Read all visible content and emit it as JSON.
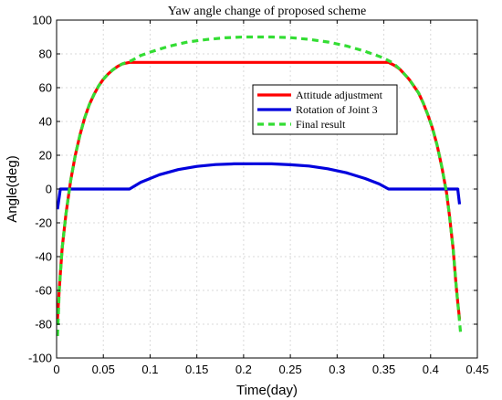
{
  "chart_data": {
    "type": "line",
    "title": "Yaw angle change of proposed scheme",
    "xlabel": "Time(day)",
    "ylabel": "Angle(deg)",
    "xlim": [
      0,
      0.45
    ],
    "ylim": [
      -100,
      100
    ],
    "xticks": [
      0,
      0.05,
      0.1,
      0.15,
      0.2,
      0.25,
      0.3,
      0.35,
      0.4,
      0.45
    ],
    "xtick_labels": [
      "0",
      "0.05",
      "0.1",
      "0.15",
      "0.2",
      "0.25",
      "0.3",
      "0.35",
      "0.4",
      "0.45"
    ],
    "yticks": [
      -100,
      -80,
      -60,
      -40,
      -20,
      0,
      20,
      40,
      60,
      80,
      100
    ],
    "ytick_labels": [
      "-100",
      "-80",
      "-60",
      "-40",
      "-20",
      "0",
      "20",
      "40",
      "60",
      "80",
      "100"
    ],
    "grid": true,
    "legend_position": "center-right",
    "series": [
      {
        "name": "Attitude adjustment",
        "color": "#ff0000",
        "style": "solid",
        "x": [
          0.001,
          0.003,
          0.006,
          0.01,
          0.015,
          0.02,
          0.025,
          0.03,
          0.035,
          0.04,
          0.045,
          0.05,
          0.055,
          0.06,
          0.065,
          0.07,
          0.078,
          0.355,
          0.362,
          0.367,
          0.372,
          0.377,
          0.382,
          0.387,
          0.392,
          0.397,
          0.402,
          0.407,
          0.412,
          0.417,
          0.42,
          0.424,
          0.427,
          0.429,
          0.431
        ],
        "y": [
          -77,
          -58,
          -35,
          -15,
          5,
          20,
          32,
          42,
          50,
          56,
          61,
          65,
          68,
          70.5,
          72.5,
          74,
          75,
          75,
          73,
          71,
          68,
          65,
          61,
          57,
          51,
          44,
          36,
          26,
          13,
          -2,
          -15,
          -35,
          -55,
          -67,
          -77
        ]
      },
      {
        "name": "Rotation of Joint 3",
        "color": "#0000dd",
        "style": "solid",
        "x": [
          0.001,
          0.004,
          0.078,
          0.09,
          0.11,
          0.13,
          0.15,
          0.17,
          0.19,
          0.21,
          0.215,
          0.23,
          0.25,
          0.27,
          0.29,
          0.31,
          0.33,
          0.345,
          0.355,
          0.419,
          0.429,
          0.431
        ],
        "y": [
          -12,
          0,
          0,
          4,
          8.5,
          11.5,
          13.4,
          14.5,
          14.9,
          15,
          15,
          14.9,
          14.4,
          13.6,
          12,
          9.6,
          6.2,
          3,
          0,
          0,
          0,
          -9
        ],
        "labels": []
      },
      {
        "name": "Final result",
        "color": "#33dd33",
        "style": "dashed",
        "x": [
          0.001,
          0.003,
          0.006,
          0.01,
          0.015,
          0.02,
          0.025,
          0.03,
          0.035,
          0.04,
          0.045,
          0.05,
          0.055,
          0.06,
          0.065,
          0.07,
          0.08,
          0.09,
          0.1,
          0.12,
          0.14,
          0.16,
          0.18,
          0.2,
          0.215,
          0.23,
          0.25,
          0.27,
          0.29,
          0.31,
          0.33,
          0.34,
          0.35,
          0.36,
          0.367,
          0.372,
          0.377,
          0.382,
          0.387,
          0.392,
          0.397,
          0.402,
          0.407,
          0.412,
          0.417,
          0.42,
          0.424,
          0.427,
          0.429,
          0.432
        ],
        "y": [
          -87,
          -58,
          -35,
          -15,
          5,
          20,
          32,
          42,
          50,
          56,
          61,
          65,
          68,
          70.5,
          72.5,
          74,
          76,
          79,
          81,
          84.5,
          87,
          88.5,
          89.5,
          90,
          90,
          90,
          89.6,
          88.6,
          87,
          84.7,
          81.5,
          79.5,
          77.5,
          74.5,
          71,
          68,
          65,
          61,
          57,
          51,
          44,
          36,
          26,
          13,
          -2,
          -15,
          -35,
          -55,
          -67,
          -85
        ]
      }
    ]
  }
}
